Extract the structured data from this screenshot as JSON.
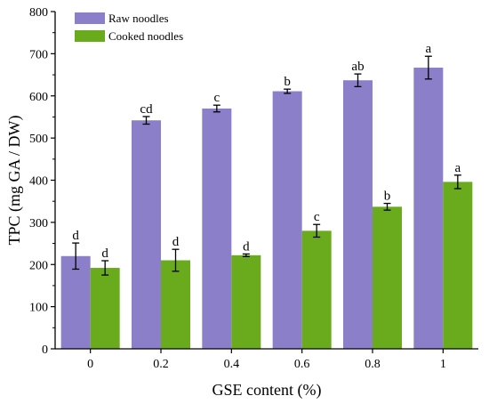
{
  "chart_data": {
    "type": "bar",
    "title": "",
    "xlabel": "GSE content (%)",
    "ylabel": "TPC (mg GA / DW)",
    "categories": [
      "0",
      "0.2",
      "0.4",
      "0.6",
      "0.8",
      "1"
    ],
    "ylim": [
      0,
      800
    ],
    "yticks": [
      0,
      100,
      200,
      300,
      400,
      500,
      600,
      700,
      800
    ],
    "grid": false,
    "legend_position": "top-left",
    "series": [
      {
        "name": "Raw noodles",
        "color": "#8b7fc9",
        "values": [
          220,
          542,
          570,
          611,
          637,
          667
        ],
        "errors": [
          31,
          9,
          8,
          5,
          15,
          27
        ],
        "labels": [
          "d",
          "cd",
          "c",
          "b",
          "ab",
          "a"
        ]
      },
      {
        "name": "Cooked noodles",
        "color": "#6aab1e",
        "values": [
          192,
          210,
          222,
          280,
          337,
          396
        ],
        "errors": [
          17,
          26,
          3,
          15,
          8,
          16
        ],
        "labels": [
          "d",
          "d",
          "d",
          "c",
          "b",
          "a"
        ]
      }
    ]
  }
}
